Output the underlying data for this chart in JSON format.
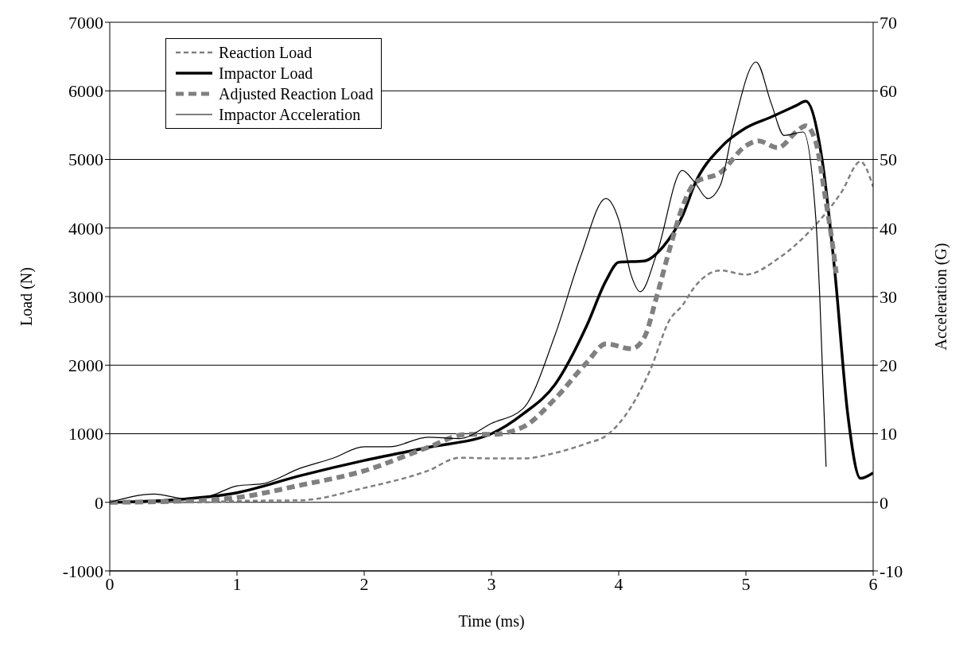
{
  "chart_data": {
    "type": "line",
    "xlabel": "Time (ms)",
    "ylabel": "Load (N)",
    "y2label": "Acceleration (G)",
    "xlim": [
      0,
      6
    ],
    "xticks": [
      0,
      1,
      2,
      3,
      4,
      5,
      6
    ],
    "ylim": [
      -1000,
      7000
    ],
    "yticks": [
      -1000,
      0,
      1000,
      2000,
      3000,
      4000,
      5000,
      6000,
      7000
    ],
    "y2lim": [
      -10,
      70
    ],
    "y2ticks": [
      -10,
      0,
      10,
      20,
      30,
      40,
      50,
      60,
      70
    ],
    "grid": "y",
    "legend": "top left",
    "marker": "none",
    "series": [
      {
        "name": "Reaction Load",
        "color": "#808080",
        "line_style": "dashed",
        "x": [
          0,
          0.7,
          1,
          1.5,
          2,
          2.5,
          2.75,
          3,
          3.25,
          3.5,
          3.75,
          3.9,
          4.1,
          4.25,
          4.4,
          4.5,
          4.6,
          4.8,
          5,
          5.25,
          5.5,
          5.75,
          5.9,
          6
        ],
        "values": [
          0,
          0,
          20,
          30,
          210,
          460,
          650,
          640,
          640,
          720,
          860,
          970,
          1400,
          1940,
          2660,
          2870,
          3150,
          3380,
          3320,
          3550,
          3950,
          4520,
          4970,
          4600
        ]
      },
      {
        "name": "Impactor Load",
        "color": "#000000",
        "line_style": "solid",
        "x": [
          0,
          0.6,
          1,
          1.5,
          2,
          2.5,
          3,
          3.25,
          3.5,
          3.75,
          3.9,
          4,
          4.2,
          4.35,
          4.5,
          4.6,
          4.8,
          5,
          5.2,
          5.4,
          5.47,
          5.6,
          5.7,
          5.8,
          5.9,
          6
        ],
        "values": [
          0,
          50,
          140,
          390,
          610,
          800,
          1000,
          1290,
          1720,
          2580,
          3230,
          3500,
          3520,
          3730,
          4170,
          4650,
          5170,
          5460,
          5620,
          5790,
          5850,
          4980,
          3340,
          1290,
          350,
          430
        ]
      },
      {
        "name": "Adjusted Reaction Load",
        "color": "#808080",
        "line_style": "dashed",
        "x": [
          0,
          0.6,
          1,
          1.5,
          2,
          2.5,
          2.8,
          3,
          3.25,
          3.5,
          3.75,
          3.9,
          4.1,
          4.2,
          4.3,
          4.4,
          4.5,
          4.6,
          4.8,
          5,
          5.1,
          5.25,
          5.4,
          5.47,
          5.55,
          5.62,
          5.68,
          5.71
        ],
        "values": [
          0,
          20,
          70,
          250,
          460,
          800,
          990,
          990,
          1100,
          1510,
          2040,
          2310,
          2240,
          2400,
          3010,
          3690,
          4300,
          4660,
          4810,
          5200,
          5270,
          5170,
          5410,
          5490,
          5250,
          4490,
          3770,
          3340
        ]
      },
      {
        "name": "Impactor Acceleration",
        "color": "#000000",
        "line_style": "solid",
        "axis": "y2",
        "x": [
          0,
          0.35,
          0.6,
          0.8,
          1,
          1.2,
          1.5,
          1.75,
          2,
          2.2,
          2.5,
          2.75,
          3,
          3.25,
          3.5,
          3.7,
          3.9,
          4,
          4.1,
          4.17,
          4.3,
          4.5,
          4.6,
          4.7,
          4.8,
          4.9,
          5.08,
          5.2,
          5.3,
          5.45,
          5.55,
          5.58,
          5.63
        ],
        "values": [
          0,
          1.2,
          0.5,
          1,
          2.4,
          2.7,
          5,
          6.4,
          8.1,
          8.1,
          9.5,
          9.3,
          11.5,
          13.7,
          24.4,
          35.8,
          44.3,
          41.2,
          33,
          30.7,
          36.3,
          48.4,
          46.6,
          44.3,
          46.3,
          54.6,
          64.2,
          58.1,
          53.5,
          54,
          41.2,
          30.1,
          5.2
        ]
      }
    ]
  }
}
